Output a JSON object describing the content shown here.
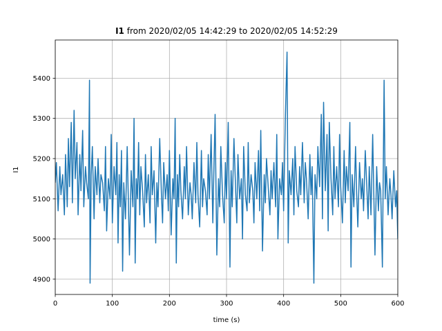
{
  "chart_data": {
    "type": "line",
    "title_bold": "I1",
    "title_rest": " from 2020/02/05 14:42:29 to 2020/02/05 14:52:29",
    "xlabel": "time (s)",
    "ylabel": "I1",
    "xlim": [
      0,
      600
    ],
    "ylim": [
      4862,
      5495
    ],
    "xticks": [
      0,
      100,
      200,
      300,
      400,
      500,
      600
    ],
    "yticks": [
      4900,
      5000,
      5100,
      5200,
      5300,
      5400
    ],
    "grid": true,
    "series": [
      {
        "color": "#1f77b4",
        "x": [
          0,
          2,
          5,
          8,
          10,
          13,
          16,
          18,
          21,
          23,
          25,
          28,
          30,
          33,
          35,
          38,
          40,
          43,
          45,
          48,
          50,
          53,
          55,
          58,
          60,
          61,
          63,
          65,
          68,
          70,
          73,
          75,
          78,
          80,
          83,
          86,
          88,
          90,
          93,
          96,
          98,
          100,
          103,
          106,
          108,
          110,
          112,
          114,
          116,
          118,
          120,
          123,
          126,
          128,
          130,
          133,
          136,
          138,
          140,
          142,
          144,
          146,
          148,
          150,
          153,
          156,
          158,
          160,
          163,
          166,
          168,
          170,
          173,
          176,
          178,
          180,
          183,
          186,
          188,
          190,
          193,
          196,
          198,
          200,
          203,
          206,
          208,
          210,
          212,
          214,
          216,
          218,
          220,
          223,
          226,
          228,
          230,
          233,
          236,
          238,
          240,
          243,
          246,
          248,
          250,
          253,
          256,
          258,
          260,
          263,
          266,
          268,
          270,
          273,
          276,
          278,
          280,
          283,
          286,
          288,
          290,
          293,
          296,
          298,
          300,
          303,
          306,
          308,
          310,
          313,
          316,
          318,
          320,
          323,
          326,
          328,
          330,
          333,
          336,
          338,
          340,
          343,
          346,
          348,
          350,
          353,
          356,
          358,
          360,
          363,
          366,
          368,
          370,
          373,
          376,
          378,
          380,
          383,
          386,
          388,
          390,
          393,
          396,
          398,
          400,
          403,
          406,
          408,
          410,
          413,
          416,
          418,
          420,
          423,
          426,
          428,
          430,
          433,
          436,
          438,
          440,
          443,
          446,
          448,
          450,
          453,
          455,
          458,
          460,
          463,
          466,
          468,
          470,
          473,
          476,
          478,
          480,
          483,
          486,
          488,
          490,
          493,
          496,
          498,
          500,
          503,
          506,
          508,
          510,
          513,
          516,
          518,
          520,
          523,
          526,
          528,
          530,
          533,
          536,
          538,
          540,
          543,
          546,
          548,
          550,
          553,
          556,
          558,
          560,
          563,
          566,
          568,
          570,
          573,
          576,
          578,
          580,
          583,
          586,
          588,
          590,
          593,
          596,
          598,
          600
        ],
        "y": [
          5140,
          5190,
          5070,
          5180,
          5110,
          5160,
          5060,
          5210,
          5080,
          5250,
          5130,
          5290,
          5090,
          5320,
          5150,
          5240,
          5060,
          5210,
          5120,
          5270,
          5080,
          5180,
          5140,
          5100,
          5395,
          4890,
          5160,
          5230,
          5050,
          5180,
          5110,
          5200,
          5090,
          5160,
          5140,
          5070,
          5230,
          5020,
          5150,
          5100,
          5260,
          5040,
          5180,
          5110,
          5240,
          4990,
          5160,
          5080,
          5220,
          4920,
          5140,
          5050,
          5230,
          5100,
          4960,
          5170,
          5080,
          5300,
          4940,
          5150,
          5100,
          5240,
          5060,
          5180,
          5120,
          5030,
          5210,
          5090,
          5160,
          5040,
          5230,
          5110,
          5170,
          4990,
          5140,
          5080,
          5250,
          5110,
          5040,
          5190,
          5100,
          5160,
          5070,
          5220,
          5010,
          5150,
          5100,
          5300,
          4940,
          5160,
          5080,
          5210,
          5120,
          5050,
          5180,
          5100,
          5230,
          5060,
          5140,
          5110,
          5050,
          5190,
          5090,
          5240,
          5110,
          5030,
          5220,
          5080,
          5150,
          5120,
          5060,
          5210,
          5100,
          5260,
          5040,
          5180,
          5310,
          4960,
          5150,
          5080,
          5230,
          5110,
          5040,
          5190,
          5100,
          5290,
          4930,
          5170,
          5080,
          5250,
          5120,
          5040,
          5210,
          5100,
          5150,
          5000,
          5230,
          5110,
          5070,
          5240,
          5090,
          5160,
          5120,
          5040,
          5190,
          5100,
          5220,
          5070,
          5270,
          4970,
          5160,
          5090,
          5200,
          5130,
          5060,
          5170,
          5100,
          5190,
          5080,
          5260,
          5000,
          5150,
          5110,
          5190,
          5070,
          5300,
          5465,
          4990,
          5170,
          5110,
          5200,
          5060,
          5230,
          5120,
          5080,
          5180,
          5110,
          5240,
          5090,
          5190,
          5150,
          5050,
          5210,
          5110,
          5180,
          4890,
          5160,
          5100,
          5230,
          5130,
          5310,
          5050,
          5340,
          5120,
          5260,
          5020,
          5290,
          5150,
          5060,
          5230,
          5100,
          5180,
          5080,
          5260,
          5130,
          5040,
          5220,
          5090,
          5180,
          5120,
          5290,
          4930,
          5160,
          5080,
          5230,
          5110,
          5030,
          5190,
          5100,
          5150,
          5070,
          5220,
          5120,
          5050,
          5180,
          5060,
          5260,
          5110,
          4960,
          5180,
          5070,
          5140,
          5120,
          4930,
          5395,
          5100,
          5180,
          5060,
          5150,
          5110,
          5050,
          5170,
          5080,
          5120,
          5000
        ]
      }
    ]
  }
}
